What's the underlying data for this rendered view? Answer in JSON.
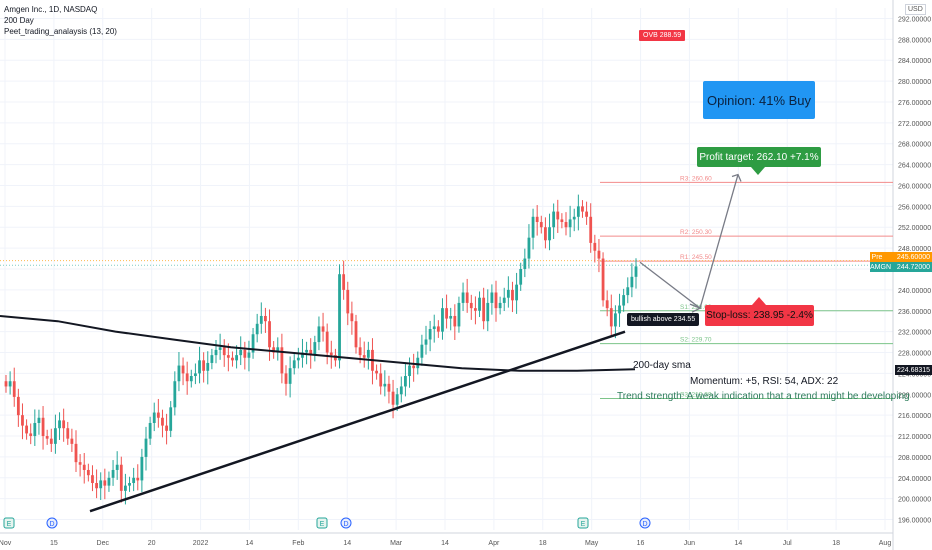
{
  "header": {
    "symbol_line": "Amgen Inc., 1D, NASDAQ",
    "indicator_1": "200 Day",
    "indicator_2": "Peet_trading_analaysis (13, 20)"
  },
  "currency": "USD",
  "badges": {
    "ovb": "OVB 288.59",
    "opinion": "Opinion: 41% Buy",
    "profit_target": "Profit target: 262.10 +7.1%",
    "stop_loss": "Stop-loss: 238.95 -2.4%",
    "bullish": "bullish above 234.55"
  },
  "annotations": {
    "sma": "200-day sma",
    "momentum": "Momentum: +5, RSI: 54, ADX: 22",
    "trend": "Trend strength: A weak indication that a trend might be developing"
  },
  "price_tags": {
    "pre": {
      "key": "Pre",
      "value": "245.60000"
    },
    "amgn": {
      "key": "AMGN",
      "value": "244.72000"
    },
    "sma": {
      "value": "224.68315"
    }
  },
  "chart_data": {
    "type": "candlestick",
    "y_axis": {
      "min": 194,
      "max": 294,
      "ticks": [
        "196.00000",
        "200.00000",
        "204.00000",
        "208.00000",
        "212.00000",
        "216.00000",
        "220.00000",
        "224.00000",
        "228.00000",
        "232.00000",
        "236.00000",
        "240.00000",
        "244.00000",
        "248.00000",
        "252.00000",
        "256.00000",
        "260.00000",
        "264.00000",
        "268.00000",
        "272.00000",
        "276.00000",
        "280.00000",
        "284.00000",
        "288.00000",
        "292.00000"
      ]
    },
    "x_axis": {
      "ticks": [
        "Nov",
        "15",
        "Dec",
        "20",
        "2022",
        "14",
        "Feb",
        "14",
        "Mar",
        "14",
        "Apr",
        "18",
        "May",
        "16",
        "Jun",
        "14",
        "Jul",
        "18",
        "Aug"
      ]
    },
    "levels": [
      {
        "label": "R3: 260.60",
        "value": 260.6
      },
      {
        "label": "R2: 250.30",
        "value": 250.3
      },
      {
        "label": "R1: 245.50",
        "value": 245.5
      },
      {
        "label": "S1: 236.00",
        "value": 236.0
      },
      {
        "label": "S2: 229.70",
        "value": 229.7
      },
      {
        "label": "S3: 219.20",
        "value": 219.2
      }
    ],
    "closes": [
      221.5,
      222.5,
      219.5,
      216.0,
      214.0,
      212.5,
      212.0,
      214.5,
      215.5,
      212.0,
      211.5,
      210.5,
      213.5,
      215.0,
      213.5,
      211.5,
      210.5,
      207.0,
      206.5,
      205.5,
      204.5,
      203.0,
      202.0,
      203.5,
      202.5,
      204.0,
      205.5,
      206.5,
      201.5,
      202.5,
      203.0,
      204.0,
      203.5,
      208.0,
      211.5,
      214.5,
      216.5,
      215.5,
      214.0,
      213.0,
      217.5,
      222.5,
      225.5,
      224.0,
      222.5,
      223.5,
      224.0,
      226.5,
      224.5,
      226.0,
      227.5,
      228.5,
      229.0,
      227.5,
      227.0,
      226.5,
      227.5,
      228.5,
      227.0,
      228.0,
      231.5,
      233.5,
      235.0,
      234.0,
      229.0,
      228.0,
      229.0,
      224.0,
      222.0,
      225.0,
      226.5,
      227.0,
      228.0,
      228.5,
      227.5,
      230.0,
      233.0,
      232.0,
      228.0,
      227.5,
      226.5,
      243.0,
      240.0,
      235.5,
      234.0,
      229.0,
      227.5,
      227.0,
      228.5,
      224.5,
      224.0,
      221.5,
      222.0,
      220.5,
      218.0,
      220.0,
      221.5,
      223.5,
      225.5,
      225.0,
      227.0,
      229.5,
      230.5,
      232.5,
      233.0,
      232.0,
      236.5,
      234.5,
      235.0,
      233.0,
      237.5,
      239.5,
      237.5,
      236.5,
      236.0,
      238.5,
      234.0,
      237.5,
      239.5,
      236.5,
      237.5,
      238.5,
      240.0,
      238.0,
      241.0,
      244.0,
      246.0,
      250.0,
      254.0,
      253.0,
      252.0,
      249.5,
      252.0,
      255.0,
      253.5,
      253.0,
      252.0,
      253.5,
      254.0,
      256.0,
      255.0,
      254.0,
      249.0,
      247.5,
      246.0,
      238.0,
      236.5,
      233.0,
      235.5,
      237.0,
      239.0,
      240.5,
      242.5,
      244.5
    ],
    "sma_200": [
      235.0,
      234.0,
      232.0,
      230.5,
      229.0,
      228.0,
      227.0,
      226.0,
      225.0,
      224.5,
      224.5,
      224.8
    ]
  }
}
